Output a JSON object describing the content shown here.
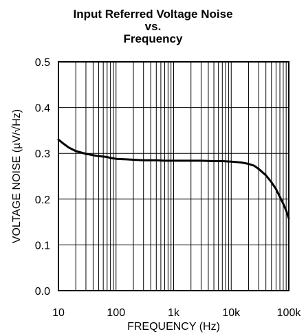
{
  "chart_data": {
    "type": "line",
    "title": [
      "Input Referred Voltage Noise",
      "vs.",
      "Frequency"
    ],
    "xlabel": "FREQUENCY (Hz)",
    "ylabel": "VOLTAGE NOISE (µV/√Hz)",
    "xscale": "log",
    "xlim": [
      10,
      100000
    ],
    "ylim": [
      0,
      0.5
    ],
    "grid": true,
    "x_ticks": [
      10,
      100,
      1000,
      10000,
      100000
    ],
    "x_tick_labels": [
      "10",
      "100",
      "1k",
      "10k",
      "100k"
    ],
    "y_ticks": [
      0,
      0.1,
      0.2,
      0.3,
      0.4,
      0.5
    ],
    "y_tick_labels": [
      "0.0",
      "0.1",
      "0.2",
      "0.3",
      "0.4",
      "0.5"
    ],
    "series": [
      {
        "x": [
          10,
          12,
          15,
          20,
          30,
          40,
          50,
          60,
          70,
          80,
          90,
          100,
          150,
          200,
          300,
          500,
          700,
          1000,
          2000,
          3000,
          5000,
          7000,
          10000,
          15000,
          20000,
          25000,
          30000,
          40000,
          50000,
          60000,
          70000,
          80000,
          90000,
          100000
        ],
        "y": [
          0.33,
          0.322,
          0.313,
          0.305,
          0.299,
          0.296,
          0.294,
          0.293,
          0.292,
          0.29,
          0.289,
          0.288,
          0.287,
          0.286,
          0.285,
          0.285,
          0.284,
          0.284,
          0.284,
          0.284,
          0.283,
          0.283,
          0.282,
          0.28,
          0.277,
          0.273,
          0.266,
          0.252,
          0.237,
          0.222,
          0.205,
          0.19,
          0.175,
          0.158
        ]
      }
    ]
  }
}
